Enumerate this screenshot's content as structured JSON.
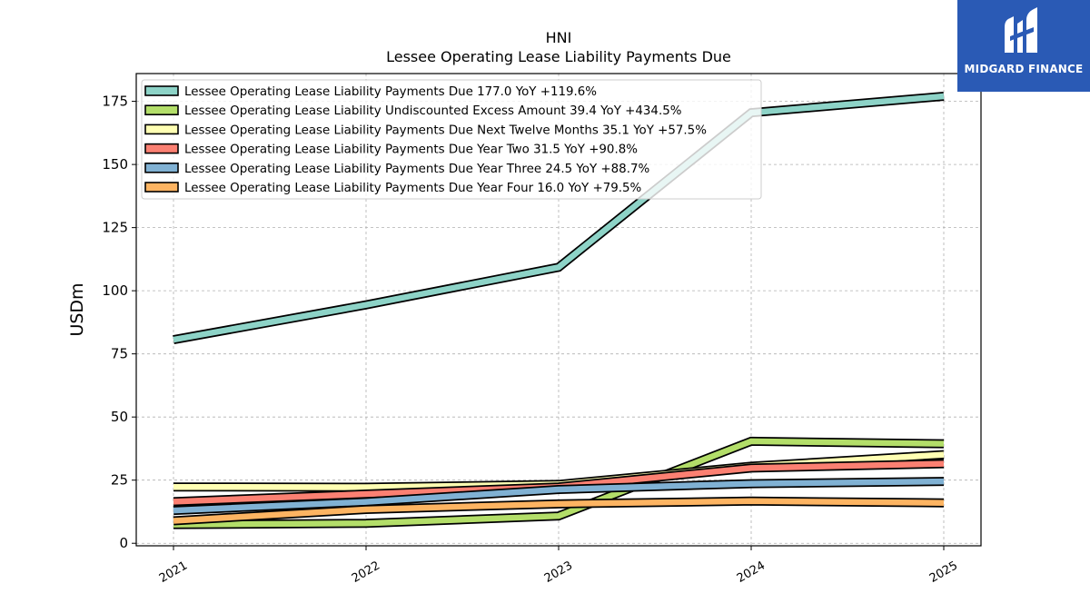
{
  "brand": {
    "name": "MIDGARD FINANCE",
    "logo_bg": "#2a5ab5"
  },
  "chart_data": {
    "type": "line",
    "title": "HNI",
    "subtitle": "Lessee Operating Lease Liability Payments Due",
    "xlabel": "",
    "ylabel": "USDm",
    "x": [
      "2021",
      "2022",
      "2023",
      "2024",
      "2025"
    ],
    "ylim": [
      -1,
      186
    ],
    "yticks": [
      0,
      25,
      50,
      75,
      100,
      125,
      150,
      175
    ],
    "grid": true,
    "legend_position": "top-left",
    "series": [
      {
        "name": "Lessee Operating Lease Liability Payments Due  177.0 YoY +119.6%",
        "color": "#8dd3c7",
        "values": [
          80.6,
          94.4,
          109.3,
          170.5,
          177.0
        ]
      },
      {
        "name": "Lessee Operating Lease Liability Undiscounted Excess Amount  39.4 YoY +434.5%",
        "color": "#b3de69",
        "values": [
          7.4,
          7.9,
          10.8,
          40.4,
          39.4
        ]
      },
      {
        "name": "Lessee Operating Lease Liability Payments Due Next Twelve Months  35.1 YoY +57.5%",
        "color": "#ffffb3",
        "values": [
          22.3,
          22.2,
          23.3,
          30.5,
          35.1
        ]
      },
      {
        "name": "Lessee Operating Lease Liability Payments Due Year Two  31.5 YoY +90.8%",
        "color": "#fb8072",
        "values": [
          16.5,
          19.5,
          22.3,
          29.8,
          31.5
        ]
      },
      {
        "name": "Lessee Operating Lease Liability Payments Due Year Three  24.5 YoY +88.7%",
        "color": "#80b1d3",
        "values": [
          13.0,
          16.4,
          21.3,
          23.6,
          24.5
        ]
      },
      {
        "name": "Lessee Operating Lease Liability Payments Due Year Four  16.0 YoY +79.5%",
        "color": "#fdb462",
        "values": [
          8.9,
          13.4,
          15.6,
          16.7,
          16.0
        ]
      }
    ]
  }
}
